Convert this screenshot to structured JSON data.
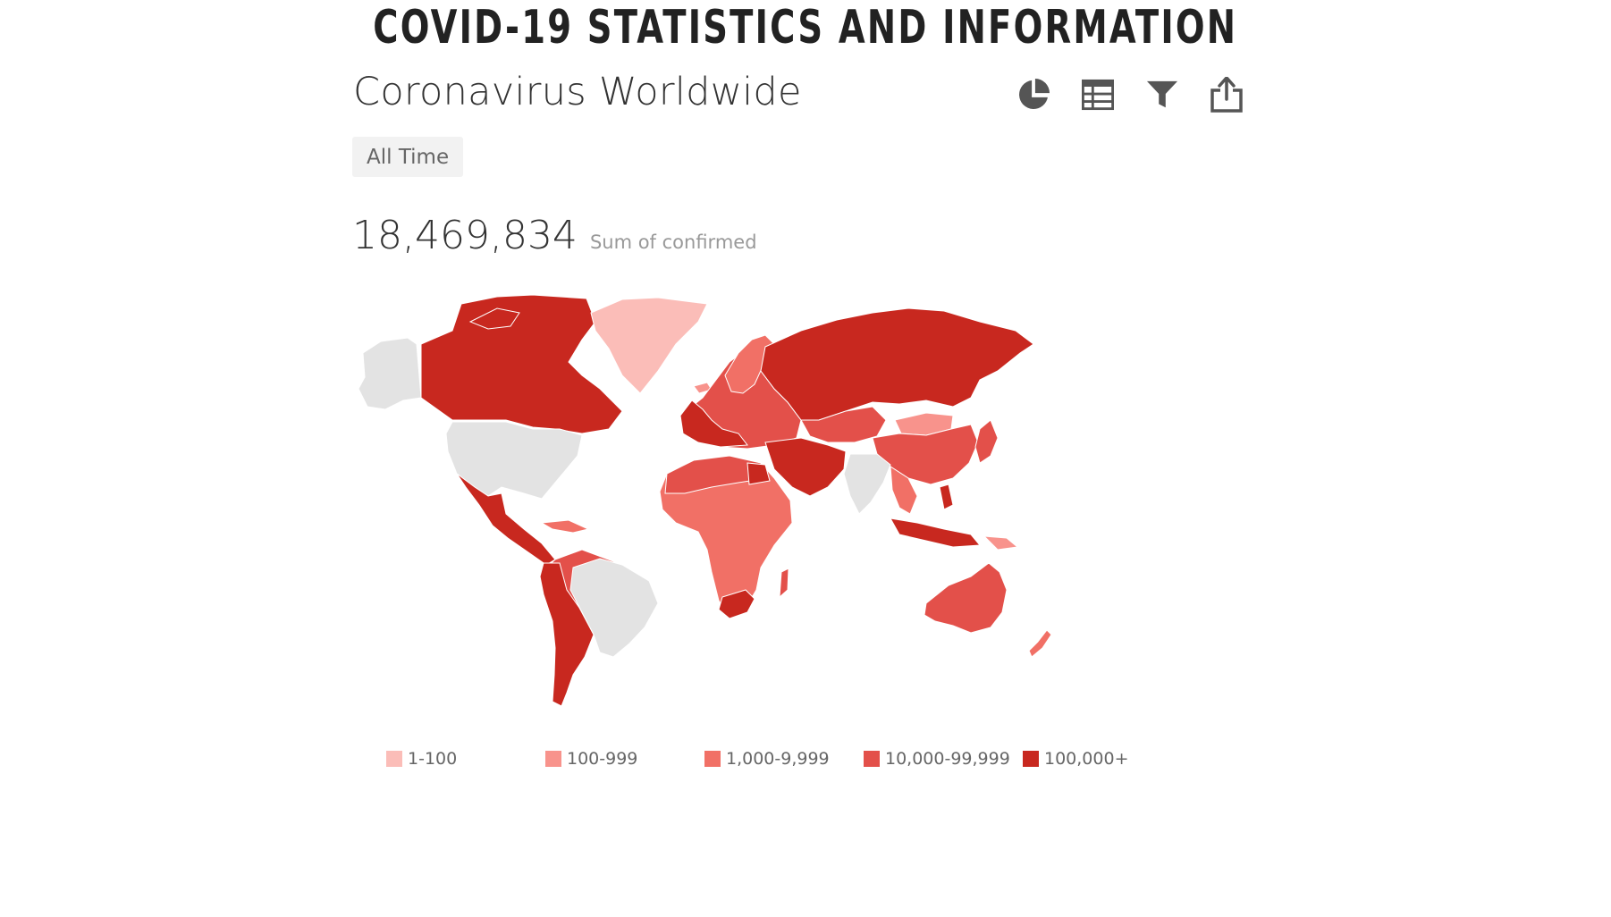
{
  "page": {
    "heading": "COVID-19 STATISTICS AND INFORMATION"
  },
  "widget": {
    "title": "Coronavirus Worldwide",
    "filter_label": "All Time",
    "kpi_value": "18,469,834",
    "kpi_label": "Sum of confirmed"
  },
  "toolbar": [
    {
      "name": "pie-chart-icon"
    },
    {
      "name": "table-icon"
    },
    {
      "name": "filter-icon"
    },
    {
      "name": "share-icon"
    }
  ],
  "colors": {
    "no_data": "#e3e3e3",
    "bin1": "#fbbdb8",
    "bin2": "#f8938c",
    "bin3": "#f17066",
    "bin4": "#e3504a",
    "bin5": "#c8281f",
    "icon": "#555555"
  },
  "legend": [
    {
      "label": "1-100",
      "color": "#fbbdb8"
    },
    {
      "label": "100-999",
      "color": "#f8938c"
    },
    {
      "label": "1,000-9,999",
      "color": "#f17066"
    },
    {
      "label": "10,000-99,999",
      "color": "#e3504a"
    },
    {
      "label": "100,000+",
      "color": "#c8281f"
    }
  ]
}
